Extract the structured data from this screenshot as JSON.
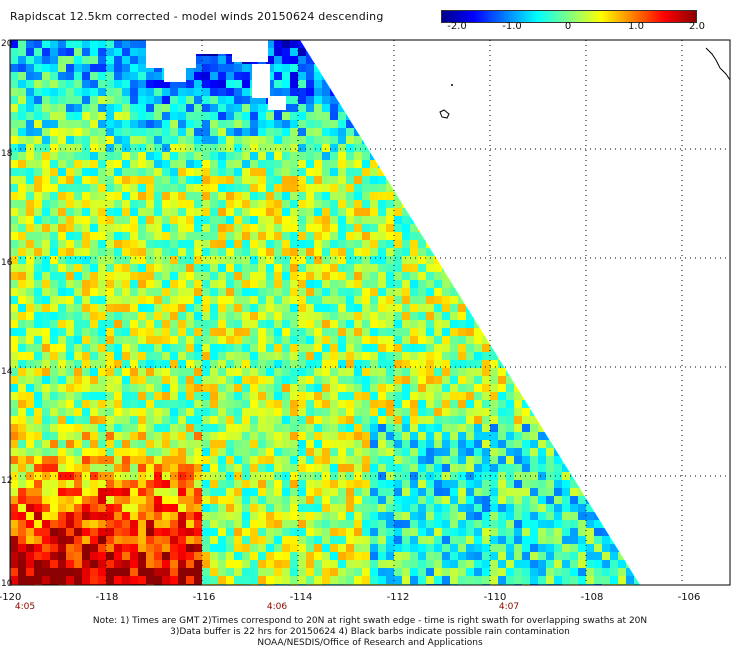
{
  "title": "Rapidscat 12.5km corrected - model winds 20150624 descending",
  "colorbar": {
    "min": -2.0,
    "max": 2.0,
    "ticks": [
      "-2.0",
      "-1.0",
      "0",
      "1.0",
      "2.0"
    ],
    "colors": [
      "#00008b",
      "#0000ff",
      "#0080ff",
      "#00ffff",
      "#80ff80",
      "#ffff00",
      "#ff8000",
      "#ff0000",
      "#8b0000"
    ]
  },
  "chart_data": {
    "type": "heatmap",
    "xlabel": "",
    "ylabel": "",
    "x_ticks": [
      "-120",
      "-118",
      "-116",
      "-114",
      "-112",
      "-110",
      "-108",
      "-106"
    ],
    "y_ticks": [
      "10",
      "12",
      "14",
      "16",
      "18",
      "20"
    ],
    "xlim": [
      -120,
      -105
    ],
    "ylim": [
      10,
      20
    ],
    "time_labels": [
      {
        "lon": -120,
        "text": "4:05"
      },
      {
        "lon": -114,
        "text": "4:06"
      },
      {
        "lon": -110,
        "text": "4:07"
      }
    ],
    "value_range": [
      -2.0,
      2.0
    ],
    "grid": true
  },
  "footer": {
    "line1": "Note: 1) Times are GMT 2)Times correspond to 20N at right swath edge - time is right swath for overlapping swaths at 20N",
    "line2": "3)Data buffer is 22 hrs for 20150624 4) Black barbs indicate possible rain contamination",
    "line3": "NOAA/NESDIS/Office of Research and Applications"
  }
}
